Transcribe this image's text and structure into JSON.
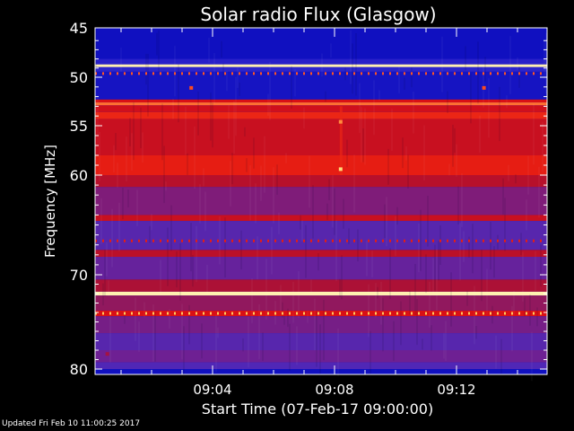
{
  "chart_data": {
    "type": "heatmap",
    "title": "Solar radio Flux (Glasgow)",
    "xlabel": "Start Time (07-Feb-17 09:00:00)",
    "ylabel": "Frequency [MHz]",
    "x_unit": "minutes after 09:00:00",
    "xlim": [
      0,
      15
    ],
    "ylim": [
      45,
      80
    ],
    "y_reversed": true,
    "x_ticks": [
      {
        "value": 4,
        "label": "09:04"
      },
      {
        "value": 8,
        "label": "09:08"
      },
      {
        "value": 12,
        "label": "09:12"
      }
    ],
    "y_ticks": [
      {
        "value": 45,
        "label": "45"
      },
      {
        "value": 50,
        "label": "50"
      },
      {
        "value": 55,
        "label": "55"
      },
      {
        "value": 60,
        "label": "60"
      },
      {
        "value": 70,
        "label": "70"
      },
      {
        "value": 80,
        "label": "80"
      }
    ],
    "colorscale": [
      "#1010c0",
      "#3a2cd0",
      "#702090",
      "#b01030",
      "#e01010",
      "#ff5020",
      "#ffd060",
      "#fff0b0"
    ],
    "bands": [
      {
        "from": 45.0,
        "to": 48.0,
        "level": 0.0
      },
      {
        "from": 48.0,
        "to": 48.6,
        "level": 0.08
      },
      {
        "from": 48.6,
        "to": 48.9,
        "level": 1.0
      },
      {
        "from": 48.9,
        "to": 49.4,
        "level": 0.1
      },
      {
        "from": 49.4,
        "to": 52.3,
        "level": 0.02
      },
      {
        "from": 52.3,
        "to": 52.6,
        "level": 0.55
      },
      {
        "from": 52.6,
        "to": 52.9,
        "level": 0.75
      },
      {
        "from": 52.9,
        "to": 53.6,
        "level": 0.52
      },
      {
        "from": 53.6,
        "to": 54.3,
        "level": 0.62
      },
      {
        "from": 54.3,
        "to": 58.0,
        "level": 0.5
      },
      {
        "from": 58.0,
        "to": 60.0,
        "level": 0.6
      },
      {
        "from": 60.0,
        "to": 61.2,
        "level": 0.45
      },
      {
        "from": 61.2,
        "to": 64.0,
        "level": 0.32
      },
      {
        "from": 64.0,
        "to": 64.6,
        "level": 0.5
      },
      {
        "from": 64.6,
        "to": 67.5,
        "level": 0.22
      },
      {
        "from": 67.5,
        "to": 68.2,
        "level": 0.46
      },
      {
        "from": 68.2,
        "to": 70.5,
        "level": 0.26
      },
      {
        "from": 70.5,
        "to": 71.8,
        "level": 0.42
      },
      {
        "from": 71.8,
        "to": 72.2,
        "level": 1.0
      },
      {
        "from": 72.2,
        "to": 73.8,
        "level": 0.36
      },
      {
        "from": 73.8,
        "to": 74.4,
        "level": 0.55
      },
      {
        "from": 74.4,
        "to": 76.2,
        "level": 0.3
      },
      {
        "from": 76.2,
        "to": 78.0,
        "level": 0.22
      },
      {
        "from": 78.0,
        "to": 79.3,
        "level": 0.28
      },
      {
        "from": 79.3,
        "to": 80.0,
        "level": 0.2
      }
    ],
    "spots": [
      {
        "x": 3.3,
        "y": 51.1,
        "level": 0.7
      },
      {
        "x": 12.9,
        "y": 51.1,
        "level": 0.7
      },
      {
        "x": 8.2,
        "y": 54.6,
        "level": 0.78
      },
      {
        "x": 8.2,
        "y": 59.4,
        "level": 0.9
      },
      {
        "x": 0.55,
        "y": 78.4,
        "level": 0.4
      }
    ]
  },
  "footer": {
    "updated": "Updated Fri Feb 10 11:00:25 2017"
  }
}
